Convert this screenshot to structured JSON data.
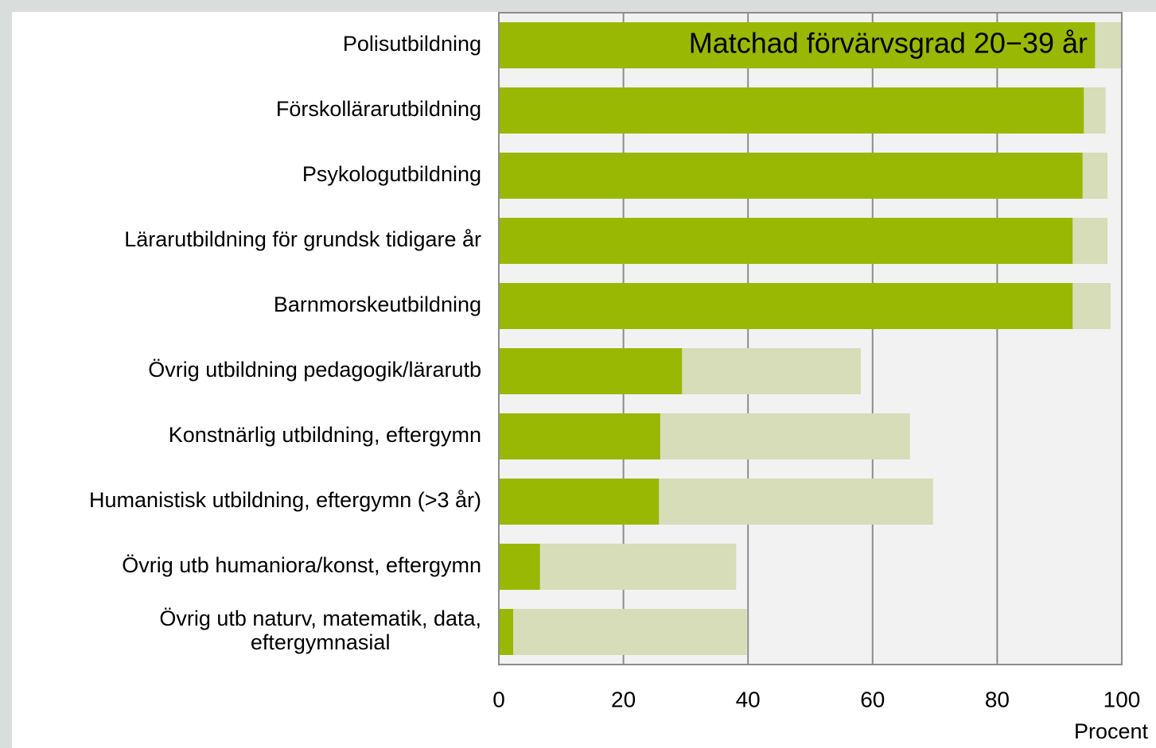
{
  "chart_data": {
    "type": "bar",
    "orientation": "horizontal",
    "annotation": "Matchad förvärvsgrad 20−39 år",
    "xlabel": "Procent",
    "categories": [
      "Polisutbildning",
      "Förskollärarutbildning",
      "Psykologutbildning",
      "Lärarutbildning för grundsk tidigare år",
      "Barnmorskeutbildning",
      "Övrig utbildning pedagogik/lärarutb",
      "Konstnärlig utbildning, eftergymn",
      "Humanistisk utbildning, eftergymn (>3 år)",
      "Övrig utb humaniora/konst, eftergymn",
      "Övrig utb naturv, matematik, data,\neftergymnasial"
    ],
    "series": [
      {
        "color": "#d6ddb8",
        "values": [
          100,
          97.4,
          97.7,
          97.7,
          98.2,
          58.1,
          66.0,
          69.7,
          38.1,
          39.8
        ]
      },
      {
        "name": "Matchad förvärvsgrad 20−39 år",
        "color": "#99b803",
        "values": [
          95.7,
          93.9,
          93.7,
          92.1,
          92.1,
          29.4,
          25.9,
          25.7,
          6.6,
          2.3
        ]
      }
    ],
    "xlim": [
      0,
      100
    ],
    "xticks": [
      0,
      20,
      40,
      60,
      80,
      100
    ],
    "grid": true
  }
}
